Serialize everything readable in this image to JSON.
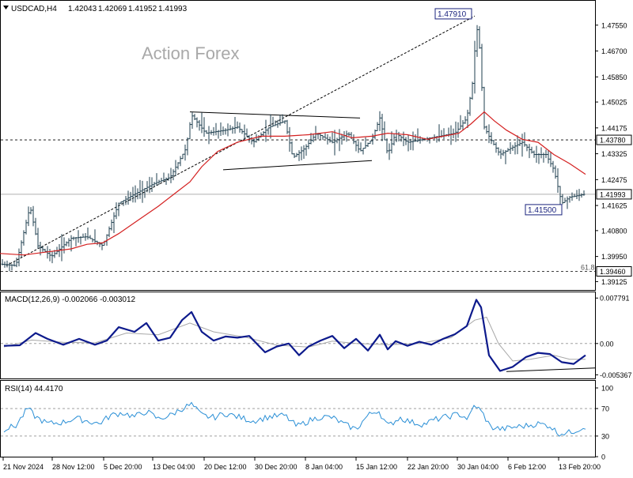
{
  "chart_data": [
    {
      "type": "candlestick",
      "header": {
        "symbol_tf": "USDCAD,H4",
        "ohlc": [
          "1.42043",
          "1.42069",
          "1.41952",
          "1.41993"
        ]
      },
      "watermark": "Action Forex",
      "ylim": [
        1.3885,
        1.4835
      ],
      "y_ticks": [
        "1.47550",
        "1.46700",
        "1.45850",
        "1.45025",
        "1.44175",
        "1.43325",
        "1.42475",
        "1.41625",
        "1.40800",
        "1.39950",
        "1.39125"
      ],
      "x_ticks": [
        "21 Nov 2024",
        "28 Nov 12:00",
        "5 Dec 20:00",
        "13 Dec 04:00",
        "20 Dec 12:00",
        "30 Dec 20:00",
        "8 Jan 04:00",
        "15 Jan 12:00",
        "22 Jan 20:00",
        "30 Jan 04:00",
        "6 Feb 12:00",
        "13 Feb 20:00"
      ],
      "current_price": "1.41993",
      "h_levels": [
        {
          "value": 1.4378,
          "label": "1.43780",
          "style": "dashed"
        },
        {
          "value": 1.3946,
          "label": "1.39460",
          "style": "dashed",
          "note": "61.8"
        }
      ],
      "annotations": [
        {
          "label": "1.47910",
          "value": 1.4791
        },
        {
          "label": "1.41500",
          "value": 1.415
        }
      ],
      "price_path": [
        [
          0,
          1.397
        ],
        [
          20,
          1.3965
        ],
        [
          38,
          1.416
        ],
        [
          48,
          1.403
        ],
        [
          65,
          1.3995
        ],
        [
          90,
          1.4055
        ],
        [
          110,
          1.406
        ],
        [
          130,
          1.403
        ],
        [
          150,
          1.417
        ],
        [
          170,
          1.42
        ],
        [
          195,
          1.4235
        ],
        [
          215,
          1.4255
        ],
        [
          235,
          1.435
        ],
        [
          242,
          1.446
        ],
        [
          260,
          1.44
        ],
        [
          285,
          1.441
        ],
        [
          300,
          1.442
        ],
        [
          320,
          1.437
        ],
        [
          340,
          1.442
        ],
        [
          360,
          1.444
        ],
        [
          370,
          1.432
        ],
        [
          385,
          1.435
        ],
        [
          400,
          1.44
        ],
        [
          420,
          1.437
        ],
        [
          440,
          1.44
        ],
        [
          455,
          1.434
        ],
        [
          470,
          1.438
        ],
        [
          480,
          1.445
        ],
        [
          490,
          1.433
        ],
        [
          500,
          1.44
        ],
        [
          515,
          1.437
        ],
        [
          535,
          1.438
        ],
        [
          555,
          1.439
        ],
        [
          575,
          1.44
        ],
        [
          590,
          1.445
        ],
        [
          598,
          1.458
        ],
        [
          602,
          1.476
        ],
        [
          606,
          1.468
        ],
        [
          612,
          1.442
        ],
        [
          620,
          1.438
        ],
        [
          632,
          1.433
        ],
        [
          645,
          1.435
        ],
        [
          660,
          1.437
        ],
        [
          675,
          1.433
        ],
        [
          690,
          1.433
        ],
        [
          700,
          1.428
        ],
        [
          710,
          1.417
        ],
        [
          720,
          1.419
        ],
        [
          740,
          1.42
        ]
      ],
      "ma_path": [
        [
          0,
          1.4005
        ],
        [
          30,
          1.4
        ],
        [
          60,
          1.401
        ],
        [
          90,
          1.402
        ],
        [
          110,
          1.4035
        ],
        [
          130,
          1.404
        ],
        [
          150,
          1.407
        ],
        [
          175,
          1.4115
        ],
        [
          200,
          1.416
        ],
        [
          220,
          1.42
        ],
        [
          240,
          1.424
        ],
        [
          255,
          1.429
        ],
        [
          275,
          1.434
        ],
        [
          300,
          1.437
        ],
        [
          330,
          1.439
        ],
        [
          360,
          1.439
        ],
        [
          390,
          1.4395
        ],
        [
          420,
          1.4405
        ],
        [
          445,
          1.4385
        ],
        [
          470,
          1.439
        ],
        [
          490,
          1.44
        ],
        [
          515,
          1.4395
        ],
        [
          540,
          1.438
        ],
        [
          560,
          1.439
        ],
        [
          580,
          1.44
        ],
        [
          595,
          1.443
        ],
        [
          612,
          1.447
        ],
        [
          625,
          1.444
        ],
        [
          640,
          1.441
        ],
        [
          660,
          1.438
        ],
        [
          680,
          1.437
        ],
        [
          700,
          1.433
        ],
        [
          720,
          1.43
        ],
        [
          740,
          1.4265
        ]
      ],
      "trendlines": [
        {
          "from": [
            8,
            1.3965
          ],
          "to": [
            600,
            1.4785
          ],
          "style": "dotted"
        },
        {
          "from": [
            240,
            1.447
          ],
          "to": [
            455,
            1.445
          ],
          "style": "solid"
        },
        {
          "from": [
            282,
            1.428
          ],
          "to": [
            470,
            1.431
          ],
          "style": "solid"
        }
      ]
    },
    {
      "type": "line",
      "title": "MACD(12,26,9) -0.002066 -0.003012",
      "ylim": [
        -0.00585,
        0.0085
      ],
      "y_ticks": [
        "0.007791",
        "0.00",
        "-0.005367"
      ],
      "zero_label": "0.00",
      "macd_path": [
        [
          5,
          -0.0004
        ],
        [
          25,
          -0.0003
        ],
        [
          45,
          0.0018
        ],
        [
          60,
          0.0008
        ],
        [
          80,
          -0.0002
        ],
        [
          100,
          0.0008
        ],
        [
          120,
          -0.0002
        ],
        [
          135,
          0.0005
        ],
        [
          150,
          0.0028
        ],
        [
          170,
          0.002
        ],
        [
          185,
          0.0035
        ],
        [
          200,
          0.0005
        ],
        [
          215,
          0.001
        ],
        [
          230,
          0.004
        ],
        [
          242,
          0.0054
        ],
        [
          255,
          0.002
        ],
        [
          270,
          0.0005
        ],
        [
          285,
          0.0012
        ],
        [
          300,
          0.001
        ],
        [
          315,
          0.0013
        ],
        [
          335,
          -0.0015
        ],
        [
          350,
          -0.0005
        ],
        [
          365,
          0.0
        ],
        [
          378,
          -0.002
        ],
        [
          390,
          -0.0005
        ],
        [
          405,
          0.0005
        ],
        [
          420,
          0.0013
        ],
        [
          435,
          -0.0008
        ],
        [
          450,
          0.0008
        ],
        [
          465,
          -0.0012
        ],
        [
          480,
          0.0015
        ],
        [
          490,
          -0.001
        ],
        [
          500,
          0.0004
        ],
        [
          515,
          -0.0004
        ],
        [
          530,
          0.0003
        ],
        [
          545,
          -0.0002
        ],
        [
          560,
          0.0008
        ],
        [
          575,
          0.0016
        ],
        [
          590,
          0.003
        ],
        [
          602,
          0.0075
        ],
        [
          608,
          0.0062
        ],
        [
          618,
          -0.002
        ],
        [
          632,
          -0.0047
        ],
        [
          648,
          -0.004
        ],
        [
          665,
          -0.0023
        ],
        [
          680,
          -0.0016
        ],
        [
          695,
          -0.0018
        ],
        [
          710,
          -0.0032
        ],
        [
          725,
          -0.0035
        ],
        [
          740,
          -0.002
        ]
      ],
      "signal_path": [
        [
          5,
          -0.0006
        ],
        [
          40,
          0.0006
        ],
        [
          80,
          0.0002
        ],
        [
          120,
          0.0001
        ],
        [
          160,
          0.0018
        ],
        [
          200,
          0.0015
        ],
        [
          240,
          0.0035
        ],
        [
          270,
          0.002
        ],
        [
          310,
          0.0011
        ],
        [
          350,
          -0.0003
        ],
        [
          390,
          -0.0006
        ],
        [
          420,
          0.0004
        ],
        [
          450,
          0.0
        ],
        [
          490,
          -0.0002
        ],
        [
          530,
          0.0
        ],
        [
          570,
          0.001
        ],
        [
          600,
          0.004
        ],
        [
          615,
          0.0045
        ],
        [
          630,
          0.0
        ],
        [
          648,
          -0.003
        ],
        [
          670,
          -0.0027
        ],
        [
          700,
          -0.002
        ],
        [
          720,
          -0.0027
        ],
        [
          740,
          -0.0027
        ]
      ],
      "divergence_line": {
        "from": [
          640,
          -0.0048
        ],
        "to": [
          752,
          -0.0042
        ]
      }
    },
    {
      "type": "line",
      "title": "RSI(14) 44.4170",
      "ylim": [
        0,
        100
      ],
      "y_ticks": [
        "100",
        "70",
        "30",
        "0"
      ],
      "levels": [
        70,
        30
      ],
      "rsi_path": [
        [
          5,
          40
        ],
        [
          20,
          45
        ],
        [
          35,
          70
        ],
        [
          45,
          58
        ],
        [
          60,
          48
        ],
        [
          80,
          50
        ],
        [
          95,
          56
        ],
        [
          110,
          52
        ],
        [
          125,
          48
        ],
        [
          140,
          60
        ],
        [
          155,
          64
        ],
        [
          170,
          58
        ],
        [
          185,
          66
        ],
        [
          200,
          55
        ],
        [
          215,
          60
        ],
        [
          230,
          70
        ],
        [
          242,
          76
        ],
        [
          255,
          60
        ],
        [
          270,
          57
        ],
        [
          285,
          63
        ],
        [
          300,
          58
        ],
        [
          320,
          52
        ],
        [
          340,
          58
        ],
        [
          360,
          60
        ],
        [
          375,
          44
        ],
        [
          390,
          52
        ],
        [
          405,
          58
        ],
        [
          420,
          57
        ],
        [
          435,
          47
        ],
        [
          450,
          40
        ],
        [
          465,
          60
        ],
        [
          478,
          68
        ],
        [
          490,
          44
        ],
        [
          505,
          57
        ],
        [
          520,
          50
        ],
        [
          535,
          47
        ],
        [
          550,
          54
        ],
        [
          565,
          58
        ],
        [
          580,
          62
        ],
        [
          592,
          55
        ],
        [
          600,
          76
        ],
        [
          610,
          63
        ],
        [
          620,
          43
        ],
        [
          635,
          40
        ],
        [
          650,
          43
        ],
        [
          665,
          45
        ],
        [
          680,
          48
        ],
        [
          695,
          45
        ],
        [
          705,
          34
        ],
        [
          720,
          35
        ],
        [
          740,
          44
        ]
      ]
    }
  ]
}
